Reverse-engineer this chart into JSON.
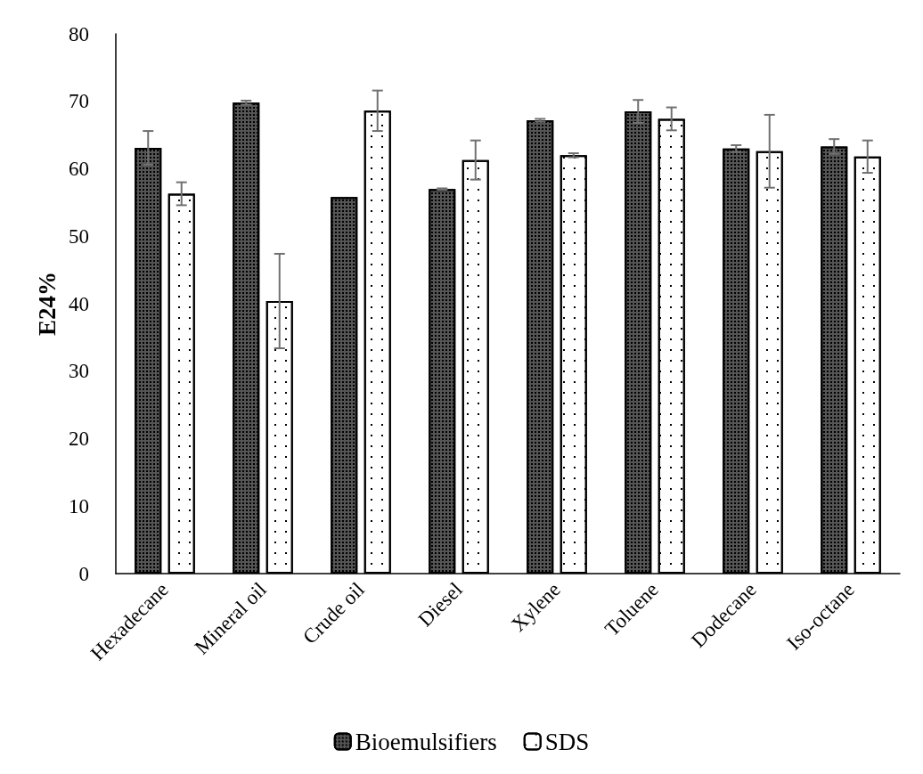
{
  "chart_data": {
    "type": "bar",
    "ylabel": "E24%",
    "categories": [
      "Hexadecane",
      "Mineral oil",
      "Crude oil",
      "Diesel",
      "Xylene",
      "Toluene",
      "Dodecane",
      "Iso-octane"
    ],
    "series": [
      {
        "name": "Bioemulsifiers",
        "color": "#555555",
        "values": [
          63.1,
          69.8,
          55.8,
          57.0,
          67.2,
          68.5,
          63.0,
          63.3
        ],
        "errors": [
          2.5,
          0.3,
          null,
          0.1,
          0.2,
          1.7,
          0.5,
          1.1
        ]
      },
      {
        "name": "SDS",
        "color": "#ffffff",
        "values": [
          56.3,
          40.4,
          68.6,
          61.3,
          62.0,
          67.4,
          62.6,
          61.8
        ],
        "errors": [
          1.7,
          7.0,
          3.0,
          2.9,
          0.3,
          1.7,
          5.4,
          2.4
        ]
      }
    ],
    "ylim": [
      0,
      80
    ],
    "yticks": [
      0,
      10,
      20,
      30,
      40,
      50,
      60,
      70,
      80
    ],
    "grid": false,
    "legend": "bottom"
  }
}
